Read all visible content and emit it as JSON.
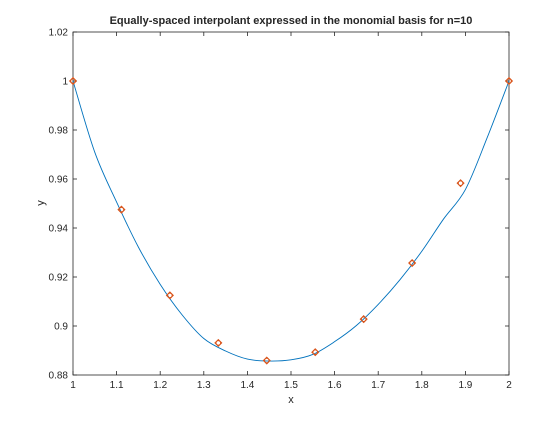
{
  "chart_data": {
    "type": "line",
    "title": "Equally-spaced interpolant  expressed in the monomial basis for n=10",
    "xlabel": "x",
    "ylabel": "y",
    "xlim": [
      1,
      2
    ],
    "ylim": [
      0.88,
      1.02
    ],
    "xticks": [
      1,
      1.1,
      1.2,
      1.3,
      1.4,
      1.5,
      1.6,
      1.7,
      1.8,
      1.9,
      2
    ],
    "xtick_labels": [
      "1",
      "1.1",
      "1.2",
      "1.3",
      "1.4",
      "1.5",
      "1.6",
      "1.7",
      "1.8",
      "1.9",
      "2"
    ],
    "yticks": [
      0.88,
      0.9,
      0.92,
      0.94,
      0.96,
      0.98,
      1,
      1.02
    ],
    "ytick_labels": [
      "0.88",
      "0.9",
      "0.92",
      "0.94",
      "0.96",
      "0.98",
      "1",
      "1.02"
    ],
    "grid": false,
    "series": [
      {
        "kind": "line",
        "color": "#0072BD",
        "x": [
          1.0,
          1.05,
          1.1,
          1.15,
          1.2,
          1.25,
          1.3,
          1.35,
          1.4,
          1.45,
          1.5,
          1.55,
          1.6,
          1.65,
          1.7,
          1.75,
          1.8,
          1.85,
          1.9,
          1.95,
          2.0
        ],
        "y": [
          1.0,
          0.9709,
          0.9506,
          0.9322,
          0.917,
          0.9046,
          0.8949,
          0.8898,
          0.8865,
          0.8857,
          0.8862,
          0.8884,
          0.8936,
          0.9002,
          0.9088,
          0.9189,
          0.9305,
          0.9437,
          0.9557,
          0.9769,
          1.0
        ]
      },
      {
        "kind": "scatter",
        "marker": "diamond",
        "color": "#D95319",
        "x": [
          1.0,
          1.1111,
          1.2222,
          1.3333,
          1.4444,
          1.5556,
          1.6667,
          1.7778,
          1.8889,
          2.0
        ],
        "y": [
          1.0,
          0.9475,
          0.9125,
          0.8931,
          0.8859,
          0.8893,
          0.9028,
          0.9257,
          0.9583,
          1.0
        ]
      }
    ]
  }
}
